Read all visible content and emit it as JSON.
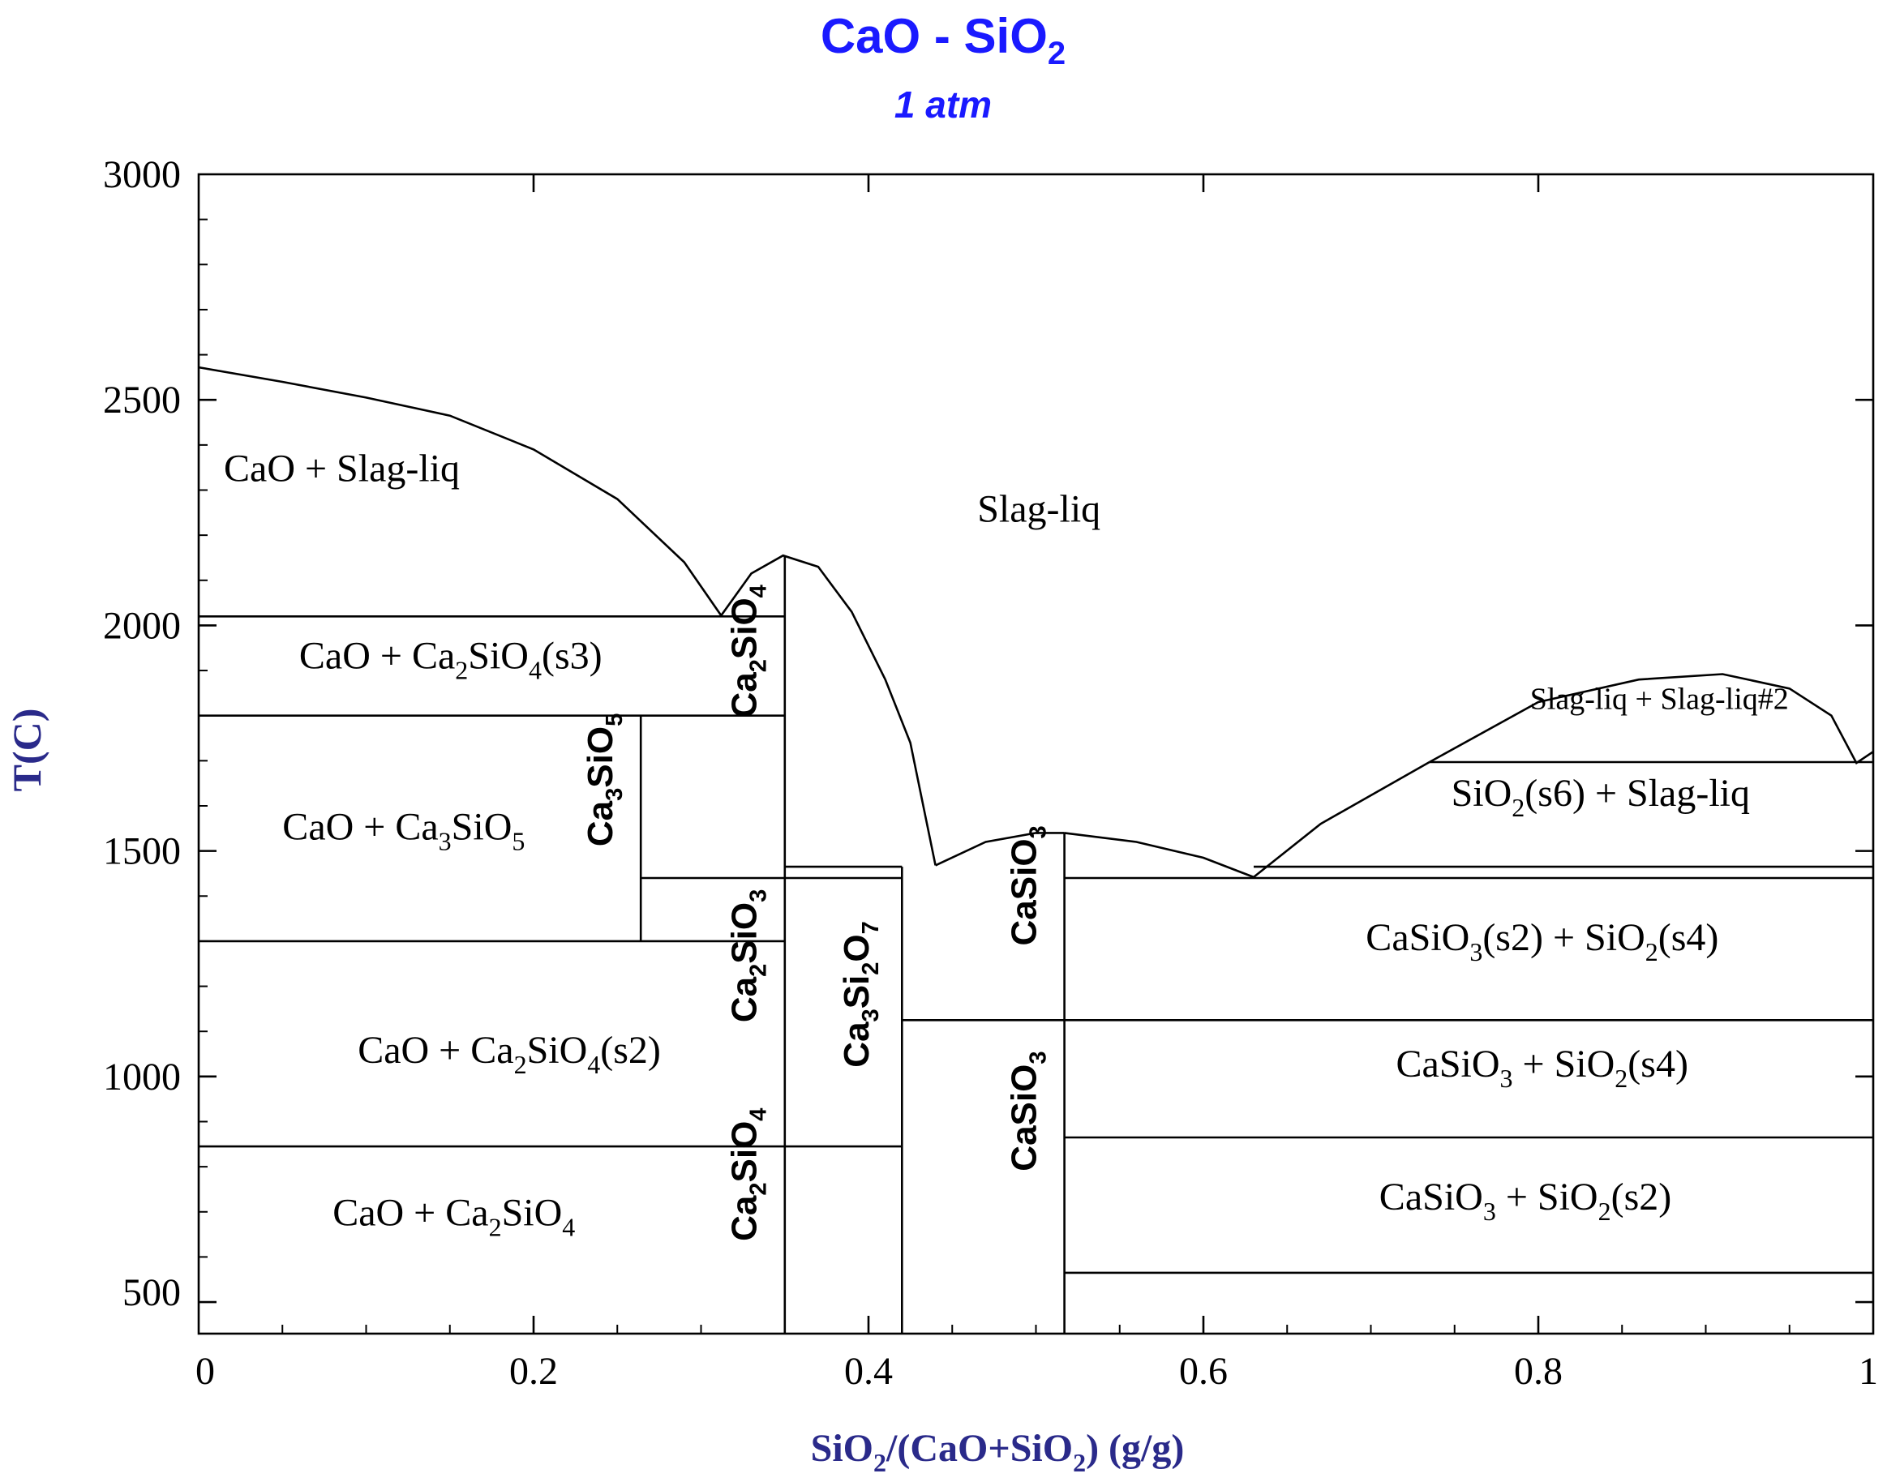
{
  "chart_data": {
    "type": "line",
    "title": "CaO - SiO",
    "title_sub": "2",
    "subtitle": "1 atm",
    "xlabel": [
      {
        "t": "SiO"
      },
      {
        "t": "2",
        "s": "sub"
      },
      {
        "t": "/(CaO+SiO"
      },
      {
        "t": "2",
        "s": "sub"
      },
      {
        "t": ") (g/g)"
      }
    ],
    "ylabel": "T(C)",
    "xlim": [
      0,
      1
    ],
    "ylim": [
      430,
      3000
    ],
    "x_ticks": [
      {
        "v": 0,
        "label": "0"
      },
      {
        "v": 0.2,
        "label": "0.2"
      },
      {
        "v": 0.4,
        "label": "0.4"
      },
      {
        "v": 0.6,
        "label": "0.6"
      },
      {
        "v": 0.8,
        "label": "0.8"
      },
      {
        "v": 1,
        "label": "1"
      }
    ],
    "y_ticks": [
      {
        "v": 3000,
        "label": "3000"
      },
      {
        "v": 2500,
        "label": "2500"
      },
      {
        "v": 2000,
        "label": "2000"
      },
      {
        "v": 1500,
        "label": "1500"
      },
      {
        "v": 1000,
        "label": "1000"
      },
      {
        "v": 500,
        "label": "500"
      }
    ],
    "series": [
      {
        "points": [
          [
            0,
            2572
          ],
          [
            0.05,
            2540
          ],
          [
            0.1,
            2505
          ],
          [
            0.15,
            2465
          ],
          [
            0.2,
            2390
          ],
          [
            0.25,
            2280
          ],
          [
            0.29,
            2140
          ],
          [
            0.312,
            2022
          ]
        ]
      },
      {
        "points": [
          [
            0.312,
            2022
          ],
          [
            0.33,
            2115
          ],
          [
            0.349,
            2155
          ],
          [
            0.37,
            2130
          ],
          [
            0.39,
            2030
          ],
          [
            0.41,
            1880
          ],
          [
            0.425,
            1740
          ],
          [
            0.44,
            1468
          ]
        ]
      },
      {
        "points": [
          [
            0.44,
            1468
          ],
          [
            0.47,
            1520
          ],
          [
            0.5,
            1540
          ],
          [
            0.517,
            1540
          ]
        ]
      },
      {
        "points": [
          [
            0.517,
            1540
          ],
          [
            0.56,
            1520
          ],
          [
            0.6,
            1485
          ],
          [
            0.63,
            1442
          ]
        ]
      },
      {
        "points": [
          [
            0.63,
            1442
          ],
          [
            0.67,
            1560
          ],
          [
            0.735,
            1697
          ]
        ]
      },
      {
        "points": [
          [
            0.735,
            1697
          ],
          [
            0.8,
            1830
          ],
          [
            0.86,
            1880
          ],
          [
            0.91,
            1892
          ],
          [
            0.95,
            1860
          ],
          [
            0.975,
            1800
          ],
          [
            0.99,
            1695
          ],
          [
            1,
            1720
          ]
        ]
      },
      {
        "points": [
          [
            0,
            2020
          ],
          [
            0.35,
            2020
          ]
        ]
      },
      {
        "points": [
          [
            0,
            1800
          ],
          [
            0.35,
            1800
          ]
        ]
      },
      {
        "points": [
          [
            0.264,
            1800
          ],
          [
            0.264,
            1300
          ]
        ]
      },
      {
        "points": [
          [
            0.264,
            1440
          ],
          [
            0.35,
            1440
          ]
        ]
      },
      {
        "points": [
          [
            0,
            1300
          ],
          [
            0.35,
            1300
          ]
        ]
      },
      {
        "points": [
          [
            0,
            845
          ],
          [
            0.42,
            845
          ]
        ]
      },
      {
        "points": [
          [
            0.35,
            2155
          ],
          [
            0.35,
            430
          ]
        ]
      },
      {
        "points": [
          [
            0.35,
            1465
          ],
          [
            0.42,
            1465
          ]
        ]
      },
      {
        "points": [
          [
            0.35,
            1440
          ],
          [
            0.42,
            1440
          ]
        ]
      },
      {
        "points": [
          [
            0.42,
            1465
          ],
          [
            0.42,
            430
          ]
        ]
      },
      {
        "points": [
          [
            0.42,
            1125
          ],
          [
            0.517,
            1125
          ]
        ]
      },
      {
        "points": [
          [
            0.517,
            1540
          ],
          [
            0.517,
            430
          ]
        ]
      },
      {
        "points": [
          [
            0.63,
            1465
          ],
          [
            1,
            1465
          ]
        ]
      },
      {
        "points": [
          [
            0.517,
            1440
          ],
          [
            1,
            1440
          ]
        ]
      },
      {
        "points": [
          [
            0.735,
            1697
          ],
          [
            1,
            1697
          ]
        ]
      },
      {
        "points": [
          [
            0.517,
            1125
          ],
          [
            1,
            1125
          ]
        ]
      },
      {
        "points": [
          [
            0.517,
            865
          ],
          [
            1,
            865
          ]
        ]
      },
      {
        "points": [
          [
            0.517,
            565
          ],
          [
            1,
            565
          ]
        ]
      }
    ],
    "region_labels": [
      {
        "x": 0.015,
        "y": 2320,
        "rot": 0,
        "size": 48,
        "parts": [
          {
            "t": "CaO + Slag-liq"
          }
        ]
      },
      {
        "x": 0.465,
        "y": 2230,
        "rot": 0,
        "size": 48,
        "parts": [
          {
            "t": "Slag-liq"
          }
        ]
      },
      {
        "x": 0.06,
        "y": 1905,
        "rot": 0,
        "size": 48,
        "parts": [
          {
            "t": "CaO + Ca"
          },
          {
            "t": "2",
            "s": "sub"
          },
          {
            "t": "SiO"
          },
          {
            "t": "4",
            "s": "sub"
          },
          {
            "t": "(s3)"
          }
        ]
      },
      {
        "x": 0.05,
        "y": 1525,
        "rot": 0,
        "size": 48,
        "parts": [
          {
            "t": "CaO + Ca"
          },
          {
            "t": "3",
            "s": "sub"
          },
          {
            "t": "SiO"
          },
          {
            "t": "5",
            "s": "sub"
          }
        ]
      },
      {
        "x": 0.095,
        "y": 1030,
        "rot": 0,
        "size": 48,
        "parts": [
          {
            "t": "CaO + Ca"
          },
          {
            "t": "2",
            "s": "sub"
          },
          {
            "t": "SiO"
          },
          {
            "t": "4",
            "s": "sub"
          },
          {
            "t": "(s2)"
          }
        ]
      },
      {
        "x": 0.08,
        "y": 670,
        "rot": 0,
        "size": 48,
        "parts": [
          {
            "t": "CaO + Ca"
          },
          {
            "t": "2",
            "s": "sub"
          },
          {
            "t": "SiO"
          },
          {
            "t": "4",
            "s": "sub"
          }
        ]
      },
      {
        "x": 0.795,
        "y": 1815,
        "rot": 0,
        "size": 38,
        "parts": [
          {
            "t": "Slag-liq + Slag-liq#2"
          }
        ]
      },
      {
        "x": 0.748,
        "y": 1600,
        "rot": 0,
        "size": 48,
        "parts": [
          {
            "t": "SiO"
          },
          {
            "t": "2",
            "s": "sub"
          },
          {
            "t": "(s6) + Slag-liq"
          }
        ]
      },
      {
        "x": 0.697,
        "y": 1280,
        "rot": 0,
        "size": 48,
        "parts": [
          {
            "t": "CaSiO"
          },
          {
            "t": "3",
            "s": "sub"
          },
          {
            "t": "(s2) + SiO"
          },
          {
            "t": "2",
            "s": "sub"
          },
          {
            "t": "(s4)"
          }
        ]
      },
      {
        "x": 0.715,
        "y": 1000,
        "rot": 0,
        "size": 48,
        "parts": [
          {
            "t": "CaSiO"
          },
          {
            "t": "3",
            "s": "sub"
          },
          {
            "t": " + SiO"
          },
          {
            "t": "2",
            "s": "sub"
          },
          {
            "t": "(s4)"
          }
        ]
      },
      {
        "x": 0.705,
        "y": 705,
        "rot": 0,
        "size": 48,
        "parts": [
          {
            "t": "CaSiO"
          },
          {
            "t": "3",
            "s": "sub"
          },
          {
            "t": " + SiO"
          },
          {
            "t": "2",
            "s": "sub"
          },
          {
            "t": "(s2)"
          }
        ]
      },
      {
        "x": 0.333,
        "y": 1795,
        "rot": -90,
        "size": 44,
        "parts": [
          {
            "t": "Ca"
          },
          {
            "t": "2",
            "s": "sub"
          },
          {
            "t": "SiO"
          },
          {
            "t": "4",
            "s": "sub"
          }
        ]
      },
      {
        "x": 0.247,
        "y": 1510,
        "rot": -90,
        "size": 44,
        "parts": [
          {
            "t": "Ca"
          },
          {
            "t": "3",
            "s": "sub"
          },
          {
            "t": "SiO"
          },
          {
            "t": "5",
            "s": "sub"
          }
        ]
      },
      {
        "x": 0.333,
        "y": 1120,
        "rot": -90,
        "size": 44,
        "parts": [
          {
            "t": "Ca"
          },
          {
            "t": "2",
            "s": "sub"
          },
          {
            "t": "SiO"
          },
          {
            "t": "3",
            "s": "sub"
          }
        ]
      },
      {
        "x": 0.333,
        "y": 635,
        "rot": -90,
        "size": 44,
        "parts": [
          {
            "t": "Ca"
          },
          {
            "t": "2",
            "s": "sub"
          },
          {
            "t": "SiO"
          },
          {
            "t": "4",
            "s": "sub"
          }
        ]
      },
      {
        "x": 0.4,
        "y": 1020,
        "rot": -90,
        "size": 44,
        "parts": [
          {
            "t": "Ca"
          },
          {
            "t": "3",
            "s": "sub"
          },
          {
            "t": "Si"
          },
          {
            "t": "2",
            "s": "sub"
          },
          {
            "t": "O"
          },
          {
            "t": "7",
            "s": "sub"
          }
        ]
      },
      {
        "x": 0.5,
        "y": 1290,
        "rot": -90,
        "size": 44,
        "parts": [
          {
            "t": "CaSiO"
          },
          {
            "t": "3",
            "s": "sub"
          }
        ]
      },
      {
        "x": 0.5,
        "y": 790,
        "rot": -90,
        "size": 44,
        "parts": [
          {
            "t": "CaSiO"
          },
          {
            "t": "3",
            "s": "sub"
          }
        ]
      }
    ]
  }
}
